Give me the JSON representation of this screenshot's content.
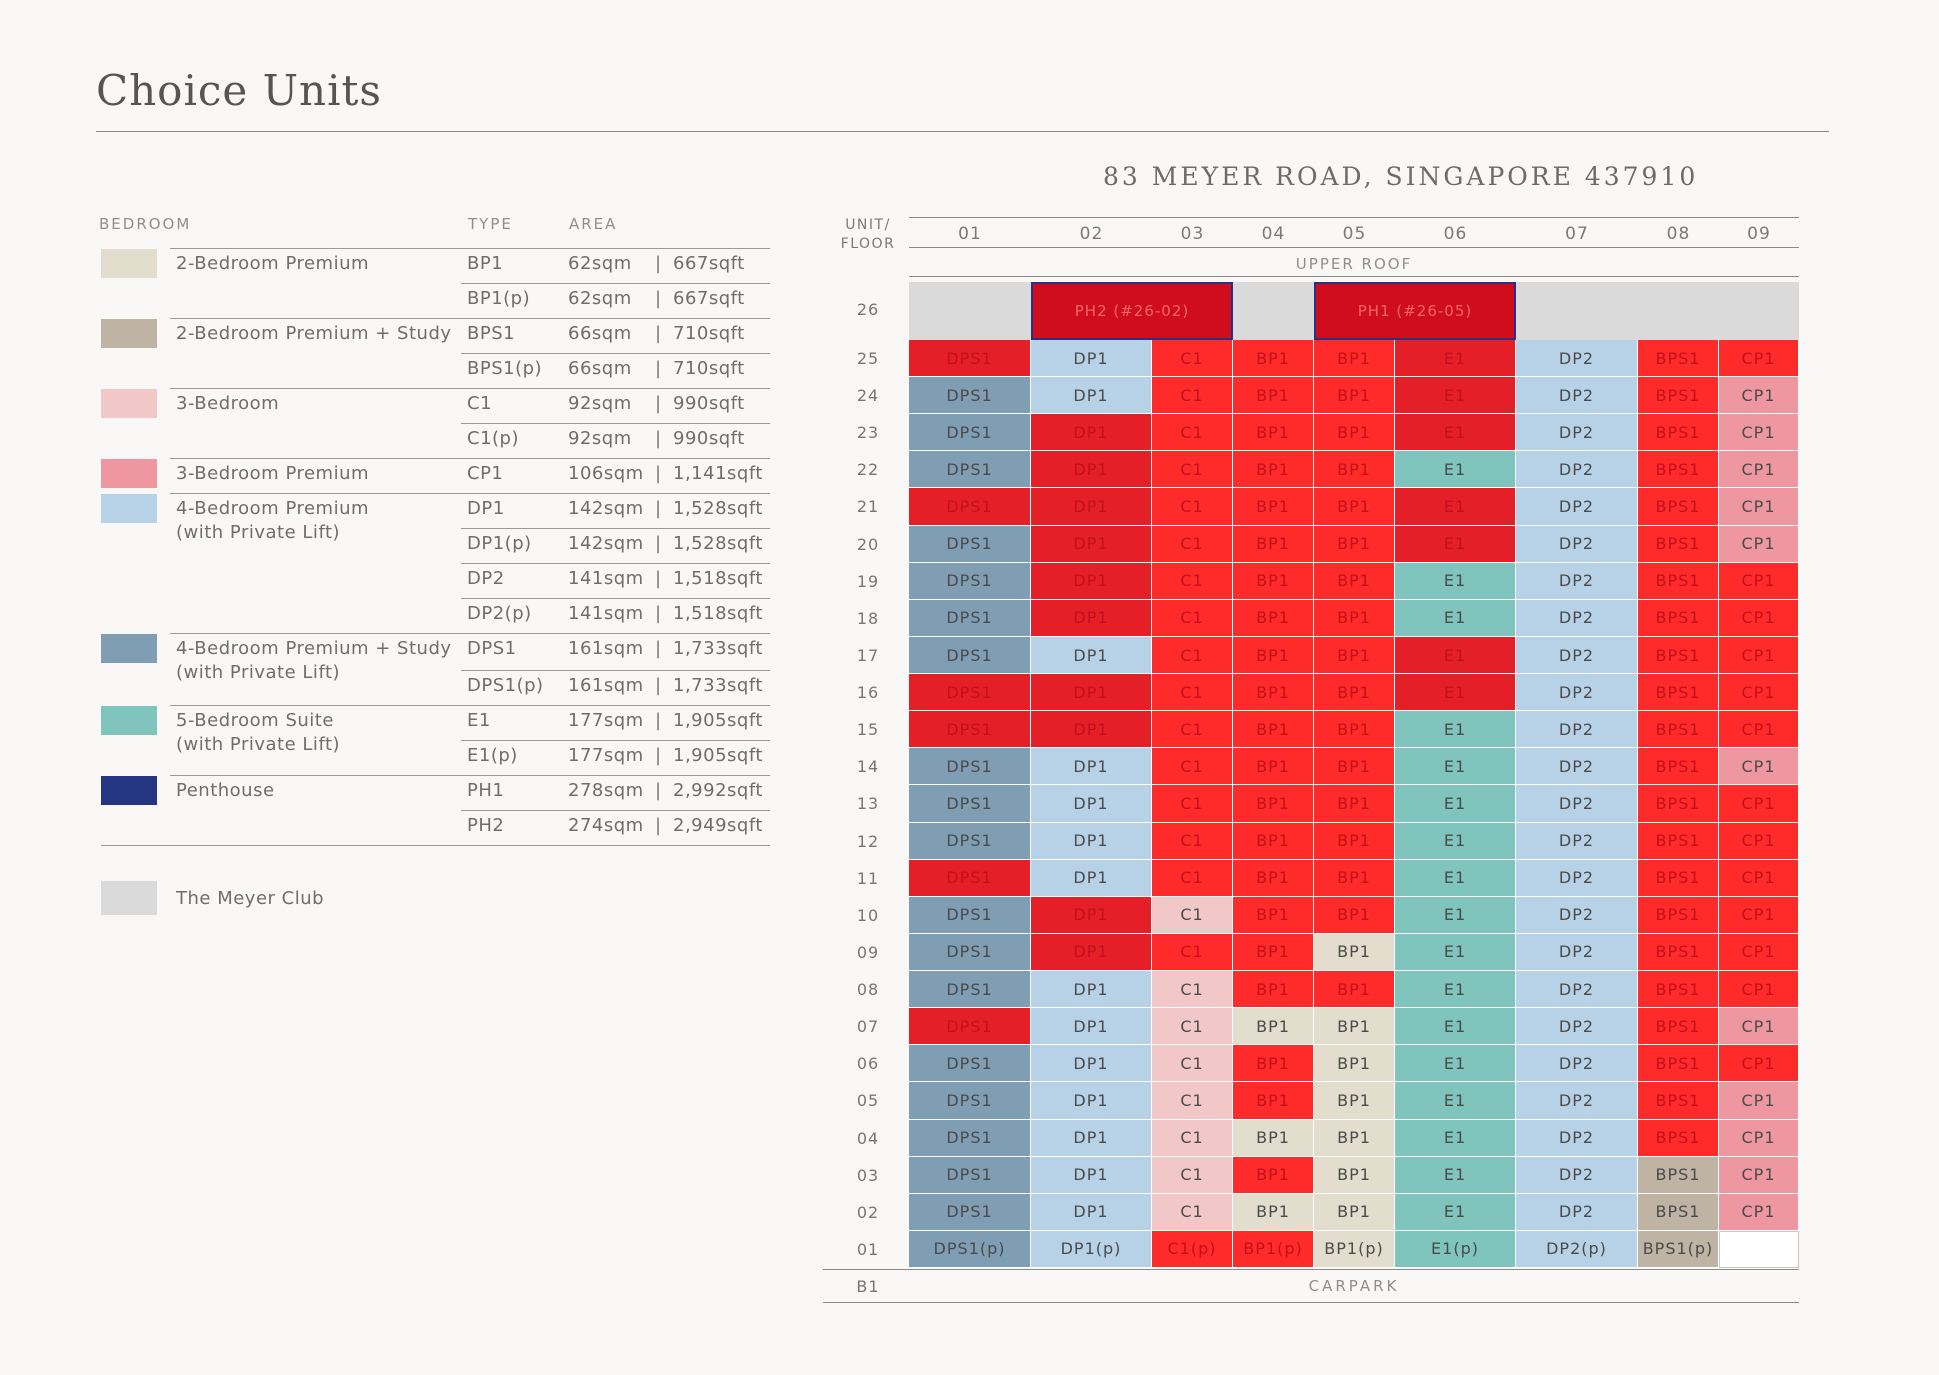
{
  "page_title": "Choice Units",
  "legend": {
    "headers": {
      "bedroom": "BEDROOM",
      "type": "TYPE",
      "area": "AREA"
    },
    "groups": [
      {
        "name": "2-Bedroom Premium",
        "color": "#e2ddcc",
        "rows": [
          {
            "type": "BP1",
            "sqm": "62sqm",
            "sqft": "667sqft"
          },
          {
            "type": "BP1(p)",
            "sqm": "62sqm",
            "sqft": "667sqft"
          }
        ]
      },
      {
        "name": "2-Bedroom Premium + Study",
        "color": "#bfb3a3",
        "rows": [
          {
            "type": "BPS1",
            "sqm": "66sqm",
            "sqft": "710sqft"
          },
          {
            "type": "BPS1(p)",
            "sqm": "66sqm",
            "sqft": "710sqft"
          }
        ]
      },
      {
        "name": "3-Bedroom",
        "color": "#f2c7c7",
        "rows": [
          {
            "type": "C1",
            "sqm": "92sqm",
            "sqft": "990sqft"
          },
          {
            "type": "C1(p)",
            "sqm": "92sqm",
            "sqft": "990sqft"
          }
        ]
      },
      {
        "name": "3-Bedroom Premium",
        "color": "#ee97a0",
        "rows": [
          {
            "type": "CP1",
            "sqm": "106sqm",
            "sqft": "1,141sqft"
          }
        ]
      },
      {
        "name": "4-Bedroom Premium",
        "name2": "(with Private Lift)",
        "color": "#b7d2e7",
        "rows": [
          {
            "type": "DP1",
            "sqm": "142sqm",
            "sqft": "1,528sqft"
          },
          {
            "type": "DP1(p)",
            "sqm": "142sqm",
            "sqft": "1,528sqft"
          },
          {
            "type": "DP2",
            "sqm": "141sqm",
            "sqft": "1,518sqft"
          },
          {
            "type": "DP2(p)",
            "sqm": "141sqm",
            "sqft": "1,518sqft"
          }
        ]
      },
      {
        "name": "4-Bedroom Premium + Study",
        "name2": "(with Private Lift)",
        "color": "#7f9db3",
        "rows": [
          {
            "type": "DPS1",
            "sqm": "161sqm",
            "sqft": "1,733sqft"
          },
          {
            "type": "DPS1(p)",
            "sqm": "161sqm",
            "sqft": "1,733sqft"
          }
        ]
      },
      {
        "name": "5-Bedroom Suite",
        "name2": "(with Private Lift)",
        "color": "#7fc4bd",
        "rows": [
          {
            "type": "E1",
            "sqm": "177sqm",
            "sqft": "1,905sqft"
          },
          {
            "type": "E1(p)",
            "sqm": "177sqm",
            "sqft": "1,905sqft"
          }
        ]
      },
      {
        "name": "Penthouse",
        "color": "#253582",
        "rows": [
          {
            "type": "PH1",
            "sqm": "278sqm",
            "sqft": "2,992sqft"
          },
          {
            "type": "PH2",
            "sqm": "274sqm",
            "sqft": "2,949sqft"
          }
        ]
      }
    ],
    "club": {
      "name": "The Meyer Club",
      "color": "#dadada"
    },
    "pipe": "|"
  },
  "grid": {
    "address": "83 MEYER ROAD, SINGAPORE 437910",
    "unit_floor_label": [
      "UNIT/",
      "FLOOR"
    ],
    "columns": [
      "01",
      "02",
      "03",
      "04",
      "05",
      "06",
      "07",
      "08",
      "09"
    ],
    "upper_roof": "UPPER ROOF",
    "carpark": "CARPARK",
    "b1": "B1",
    "penthouses": [
      {
        "label": "PH2 (#26-02)",
        "cols": [
          2,
          3
        ]
      },
      {
        "label": "PH1 (#26-05)",
        "cols": [
          5,
          6
        ]
      }
    ],
    "floor_26_label": "26",
    "colors": {
      "DPS1": "#7f9db3",
      "DP1": "#b7d2e7",
      "DP2": "#b7d2e7",
      "C1": "#f2c7c7",
      "BP1": "#e2ddcc",
      "E1": "#7fc4bd",
      "BPS1": "#bfb3a3",
      "CP1": "#ee97a0",
      "sold": "#ff2a2a",
      "sold_dark": "#e51f28"
    },
    "col_types": [
      "DPS1",
      "DP1",
      "C1",
      "BP1",
      "BP1",
      "E1",
      "DP2",
      "BPS1",
      "CP1"
    ],
    "floors": [
      {
        "floor": "25",
        "units": [
          "DPS1:s",
          "DP1",
          "C1:s",
          "BP1:s",
          "BP1:s",
          "E1:s",
          "DP2",
          "BPS1:s",
          "CP1:s"
        ]
      },
      {
        "floor": "24",
        "units": [
          "DPS1",
          "DP1",
          "C1:s",
          "BP1:s",
          "BP1:s",
          "E1:s",
          "DP2",
          "BPS1:s",
          "CP1"
        ]
      },
      {
        "floor": "23",
        "units": [
          "DPS1",
          "DP1:s",
          "C1:s",
          "BP1:s",
          "BP1:s",
          "E1:s",
          "DP2",
          "BPS1:s",
          "CP1"
        ]
      },
      {
        "floor": "22",
        "units": [
          "DPS1",
          "DP1:s",
          "C1:s",
          "BP1:s",
          "BP1:s",
          "E1",
          "DP2",
          "BPS1:s",
          "CP1"
        ]
      },
      {
        "floor": "21",
        "units": [
          "DPS1:s",
          "DP1:s",
          "C1:s",
          "BP1:s",
          "BP1:s",
          "E1:s",
          "DP2",
          "BPS1:s",
          "CP1"
        ]
      },
      {
        "floor": "20",
        "units": [
          "DPS1",
          "DP1:s",
          "C1:s",
          "BP1:s",
          "BP1:s",
          "E1:s",
          "DP2",
          "BPS1:s",
          "CP1"
        ]
      },
      {
        "floor": "19",
        "units": [
          "DPS1",
          "DP1:s",
          "C1:s",
          "BP1:s",
          "BP1:s",
          "E1",
          "DP2",
          "BPS1:s",
          "CP1:s"
        ]
      },
      {
        "floor": "18",
        "units": [
          "DPS1",
          "DP1:s",
          "C1:s",
          "BP1:s",
          "BP1:s",
          "E1",
          "DP2",
          "BPS1:s",
          "CP1:s"
        ]
      },
      {
        "floor": "17",
        "units": [
          "DPS1",
          "DP1",
          "C1:s",
          "BP1:s",
          "BP1:s",
          "E1:s",
          "DP2",
          "BPS1:s",
          "CP1:s"
        ]
      },
      {
        "floor": "16",
        "units": [
          "DPS1:s",
          "DP1:s",
          "C1:s",
          "BP1:s",
          "BP1:s",
          "E1:s",
          "DP2",
          "BPS1:s",
          "CP1:s"
        ]
      },
      {
        "floor": "15",
        "units": [
          "DPS1:s",
          "DP1:s",
          "C1:s",
          "BP1:s",
          "BP1:s",
          "E1",
          "DP2",
          "BPS1:s",
          "CP1:s"
        ]
      },
      {
        "floor": "14",
        "units": [
          "DPS1",
          "DP1",
          "C1:s",
          "BP1:s",
          "BP1:s",
          "E1",
          "DP2",
          "BPS1:s",
          "CP1"
        ]
      },
      {
        "floor": "13",
        "units": [
          "DPS1",
          "DP1",
          "C1:s",
          "BP1:s",
          "BP1:s",
          "E1",
          "DP2",
          "BPS1:s",
          "CP1:s"
        ]
      },
      {
        "floor": "12",
        "units": [
          "DPS1",
          "DP1",
          "C1:s",
          "BP1:s",
          "BP1:s",
          "E1",
          "DP2",
          "BPS1:s",
          "CP1:s"
        ]
      },
      {
        "floor": "11",
        "units": [
          "DPS1:s",
          "DP1",
          "C1:s",
          "BP1:s",
          "BP1:s",
          "E1",
          "DP2",
          "BPS1:s",
          "CP1:s"
        ]
      },
      {
        "floor": "10",
        "units": [
          "DPS1",
          "DP1:s",
          "C1",
          "BP1:s",
          "BP1:s",
          "E1",
          "DP2",
          "BPS1:s",
          "CP1:s"
        ]
      },
      {
        "floor": "09",
        "units": [
          "DPS1",
          "DP1:s",
          "C1:s",
          "BP1:s",
          "BP1",
          "E1",
          "DP2",
          "BPS1:s",
          "CP1:s"
        ]
      },
      {
        "floor": "08",
        "units": [
          "DPS1",
          "DP1",
          "C1",
          "BP1:s",
          "BP1:s",
          "E1",
          "DP2",
          "BPS1:s",
          "CP1:s"
        ]
      },
      {
        "floor": "07",
        "units": [
          "DPS1:s",
          "DP1",
          "C1",
          "BP1",
          "BP1",
          "E1",
          "DP2",
          "BPS1:s",
          "CP1"
        ]
      },
      {
        "floor": "06",
        "units": [
          "DPS1",
          "DP1",
          "C1",
          "BP1:s",
          "BP1",
          "E1",
          "DP2",
          "BPS1:s",
          "CP1:s"
        ]
      },
      {
        "floor": "05",
        "units": [
          "DPS1",
          "DP1",
          "C1",
          "BP1:s",
          "BP1",
          "E1",
          "DP2",
          "BPS1:s",
          "CP1"
        ]
      },
      {
        "floor": "04",
        "units": [
          "DPS1",
          "DP1",
          "C1",
          "BP1",
          "BP1",
          "E1",
          "DP2",
          "BPS1:s",
          "CP1"
        ]
      },
      {
        "floor": "03",
        "units": [
          "DPS1",
          "DP1",
          "C1",
          "BP1:s",
          "BP1",
          "E1",
          "DP2",
          "BPS1",
          "CP1"
        ]
      },
      {
        "floor": "02",
        "units": [
          "DPS1",
          "DP1",
          "C1",
          "BP1",
          "BP1",
          "E1",
          "DP2",
          "BPS1",
          "CP1"
        ]
      },
      {
        "floor": "01",
        "units": [
          "DPS1(p)",
          "DP1(p)",
          "C1(p):s",
          "BP1(p):s",
          "BP1(p)",
          "E1(p)",
          "DP2(p)",
          "BPS1(p)",
          ""
        ]
      }
    ]
  }
}
